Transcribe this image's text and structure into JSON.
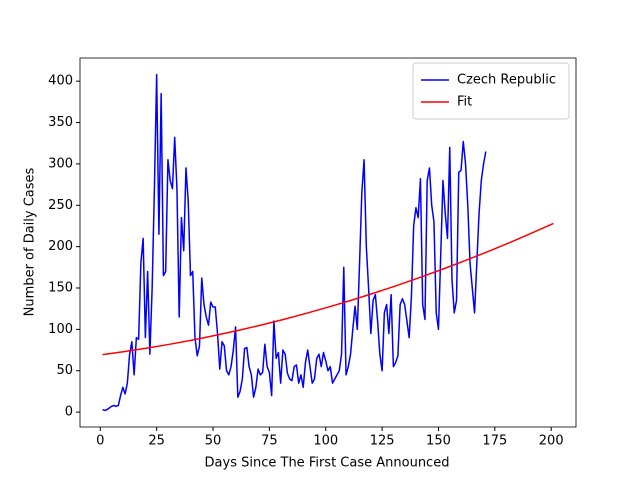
{
  "chart_data": {
    "type": "line",
    "xlabel": "Days Since The First Case Announced",
    "ylabel": "Number of Daily Cases",
    "xlim": [
      -9,
      211
    ],
    "ylim": [
      -18,
      428
    ],
    "xticks": [
      0,
      25,
      50,
      75,
      100,
      125,
      150,
      175,
      200
    ],
    "yticks": [
      0,
      50,
      100,
      150,
      200,
      250,
      300,
      350,
      400
    ],
    "legend": "upper right",
    "series": [
      {
        "name": "Czech Republic",
        "color": "#0000ff",
        "x": [
          1,
          2,
          3,
          4,
          5,
          6,
          7,
          8,
          9,
          10,
          11,
          12,
          13,
          14,
          15,
          16,
          17,
          18,
          19,
          20,
          21,
          22,
          23,
          24,
          25,
          26,
          27,
          28,
          29,
          30,
          31,
          32,
          33,
          34,
          35,
          36,
          37,
          38,
          39,
          40,
          41,
          42,
          43,
          44,
          45,
          46,
          47,
          48,
          49,
          50,
          51,
          52,
          53,
          54,
          55,
          56,
          57,
          58,
          59,
          60,
          61,
          62,
          63,
          64,
          65,
          66,
          67,
          68,
          69,
          70,
          71,
          72,
          73,
          74,
          75,
          76,
          77,
          78,
          79,
          80,
          81,
          82,
          83,
          84,
          85,
          86,
          87,
          88,
          89,
          90,
          91,
          92,
          93,
          94,
          95,
          96,
          97,
          98,
          99,
          100,
          101,
          102,
          103,
          104,
          105,
          106,
          107,
          108,
          109,
          110,
          111,
          112,
          113,
          114,
          115,
          116,
          117,
          118,
          119,
          120,
          121,
          122,
          123,
          124,
          125,
          126,
          127,
          128,
          129,
          130,
          131,
          132,
          133,
          134,
          135,
          136,
          137,
          138,
          139,
          140,
          141,
          142,
          143,
          144,
          145,
          146,
          147,
          148,
          149,
          150,
          151,
          152,
          153,
          154,
          155,
          156,
          157,
          158,
          159,
          160,
          161,
          162,
          163,
          164,
          165,
          166,
          167,
          168,
          169,
          170,
          171
        ],
        "values": [
          3,
          2,
          3,
          5,
          7,
          8,
          7,
          8,
          20,
          30,
          22,
          35,
          70,
          85,
          45,
          90,
          88,
          180,
          210,
          90,
          170,
          70,
          150,
          270,
          408,
          215,
          385,
          165,
          170,
          305,
          280,
          270,
          332,
          270,
          115,
          235,
          195,
          295,
          255,
          165,
          170,
          90,
          68,
          80,
          162,
          130,
          115,
          105,
          133,
          127,
          127,
          95,
          52,
          85,
          80,
          50,
          45,
          55,
          75,
          103,
          18,
          25,
          40,
          77,
          78,
          55,
          45,
          18,
          30,
          52,
          45,
          48,
          82,
          55,
          48,
          20,
          110,
          65,
          72,
          35,
          75,
          70,
          47,
          40,
          38,
          55,
          57,
          35,
          45,
          30,
          60,
          75,
          55,
          35,
          40,
          65,
          70,
          55,
          72,
          62,
          50,
          55,
          35,
          40,
          45,
          50,
          70,
          175,
          45,
          55,
          70,
          100,
          128,
          100,
          180,
          265,
          305,
          200,
          150,
          95,
          135,
          142,
          110,
          70,
          50,
          120,
          130,
          95,
          142,
          55,
          60,
          68,
          130,
          137,
          130,
          110,
          90,
          140,
          225,
          247,
          235,
          282,
          130,
          112,
          280,
          295,
          250,
          230,
          120,
          100,
          190,
          280,
          240,
          210,
          320,
          160,
          120,
          135,
          290,
          292,
          327,
          300,
          250,
          180,
          150,
          120,
          180,
          240,
          280,
          300,
          315
        ]
      },
      {
        "name": "Fit",
        "color": "#ff0000",
        "x": [
          1,
          11,
          21,
          31,
          41,
          51,
          61,
          71,
          81,
          91,
          101,
          111,
          121,
          131,
          141,
          151,
          161,
          171,
          181,
          191,
          201
        ],
        "values": [
          69.5,
          73.3,
          77.5,
          82.1,
          87.1,
          92.7,
          98.6,
          105.0,
          111.8,
          119.1,
          126.8,
          134.9,
          143.5,
          152.5,
          162.0,
          171.9,
          182.3,
          193.0,
          204.2,
          215.9,
          228.0
        ]
      }
    ]
  }
}
